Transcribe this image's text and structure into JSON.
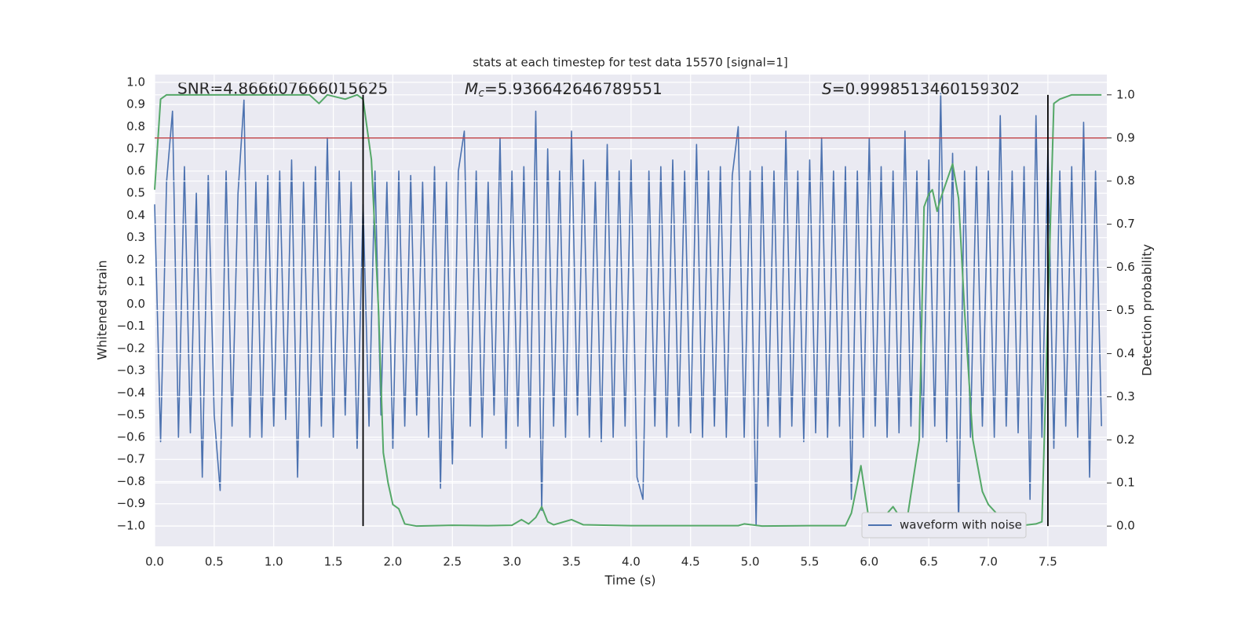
{
  "chart_data": {
    "type": "line",
    "title": "stats at each timestep for test data 15570 [signal=1]",
    "xlabel": "Time (s)",
    "ylabel": "Whitened strain",
    "y2label": "Detection probability",
    "annotations": [
      {
        "text": "SNR=4.866607666015625"
      },
      {
        "symbol": "M",
        "subscript": "c",
        "text": "=5.936642646789551"
      },
      {
        "symbol": "S",
        "text": "=0.9998513460159302"
      }
    ],
    "xlim": [
      0,
      7.995
    ],
    "ylim": [
      -1.092,
      1.035
    ],
    "y2lim": [
      -0.047,
      1.047
    ],
    "xticks": [
      {
        "value": 0,
        "label": "0.0"
      },
      0.5,
      {
        "value": 1,
        "label": "1.0"
      },
      1.5,
      {
        "value": 2,
        "label": "2.0"
      },
      2.5,
      {
        "value": 3,
        "label": "3.0"
      },
      3.5,
      {
        "value": 4,
        "label": "4.0"
      },
      4.5,
      {
        "value": 5,
        "label": "5.0"
      },
      5.5,
      {
        "value": 6,
        "label": "6.0"
      },
      6.5,
      {
        "value": 7,
        "label": "7.0"
      },
      7.5
    ],
    "yticks": [
      {
        "value": -1,
        "label": "−1.0"
      },
      {
        "value": -0.9,
        "label": "−0.9"
      },
      {
        "value": -0.8,
        "label": "−0.8"
      },
      {
        "value": -0.7,
        "label": "−0.7"
      },
      {
        "value": -0.6,
        "label": "−0.6"
      },
      {
        "value": -0.5,
        "label": "−0.5"
      },
      {
        "value": -0.4,
        "label": "−0.4"
      },
      {
        "value": -0.3,
        "label": "−0.3"
      },
      {
        "value": -0.2,
        "label": "−0.2"
      },
      {
        "value": -0.1,
        "label": "−0.1"
      },
      {
        "value": 0,
        "label": "0.0"
      },
      0.1,
      0.2,
      0.3,
      0.4,
      0.5,
      0.6,
      0.7,
      0.8,
      0.9,
      {
        "value": 1,
        "label": "1.0"
      }
    ],
    "y2ticks": [
      {
        "value": 0,
        "label": "0.0"
      },
      0.1,
      0.2,
      0.3,
      0.4,
      0.5,
      0.6,
      0.7,
      0.8,
      0.9,
      {
        "value": 1,
        "label": "1.0"
      }
    ],
    "grid": true,
    "legend": "lower right",
    "series": [
      {
        "name": "waveform with noise",
        "color": "#4c72b0",
        "x": [
          0,
          0.05,
          0.1,
          0.15,
          0.2,
          0.25,
          0.3,
          0.35,
          0.4,
          0.45,
          0.5,
          0.55,
          0.6,
          0.65,
          0.7,
          0.75,
          0.8,
          0.85,
          0.9,
          0.95,
          1,
          1.05,
          1.1,
          1.15,
          1.2,
          1.25,
          1.3,
          1.35,
          1.4,
          1.45,
          1.5,
          1.55,
          1.6,
          1.65,
          1.7,
          1.75,
          1.8,
          1.85,
          1.9,
          1.95,
          2,
          2.05,
          2.1,
          2.15,
          2.2,
          2.25,
          2.3,
          2.35,
          2.4,
          2.45,
          2.5,
          2.55,
          2.6,
          2.65,
          2.7,
          2.75,
          2.8,
          2.85,
          2.9,
          2.95,
          3,
          3.05,
          3.1,
          3.15,
          3.2,
          3.25,
          3.3,
          3.35,
          3.4,
          3.45,
          3.5,
          3.55,
          3.6,
          3.65,
          3.7,
          3.75,
          3.8,
          3.85,
          3.9,
          3.95,
          4,
          4.05,
          4.1,
          4.15,
          4.2,
          4.25,
          4.3,
          4.35,
          4.4,
          4.45,
          4.5,
          4.55,
          4.6,
          4.65,
          4.7,
          4.75,
          4.8,
          4.85,
          4.9,
          4.95,
          5,
          5.05,
          5.1,
          5.15,
          5.2,
          5.25,
          5.3,
          5.35,
          5.4,
          5.45,
          5.5,
          5.55,
          5.6,
          5.65,
          5.7,
          5.75,
          5.8,
          5.85,
          5.9,
          5.95,
          6,
          6.05,
          6.1,
          6.15,
          6.2,
          6.25,
          6.3,
          6.35,
          6.4,
          6.45,
          6.5,
          6.55,
          6.6,
          6.65,
          6.7,
          6.75,
          6.8,
          6.85,
          6.9,
          6.95,
          7,
          7.05,
          7.1,
          7.15,
          7.2,
          7.25,
          7.3,
          7.35,
          7.4,
          7.45,
          7.5,
          7.55,
          7.6,
          7.65,
          7.7,
          7.75,
          7.8,
          7.85,
          7.9,
          7.95
        ],
        "values": [
          0.45,
          -0.62,
          0.55,
          0.87,
          -0.6,
          0.62,
          -0.58,
          0.5,
          -0.78,
          0.58,
          -0.5,
          -0.84,
          0.6,
          -0.55,
          0.5,
          0.92,
          -0.6,
          0.55,
          -0.6,
          0.58,
          -0.55,
          0.6,
          -0.52,
          0.65,
          -0.78,
          0.55,
          -0.6,
          0.62,
          -0.55,
          0.75,
          -0.6,
          0.6,
          -0.5,
          0.55,
          -0.65,
          0.45,
          -0.55,
          0.6,
          -0.5,
          0.55,
          -0.65,
          0.6,
          -0.55,
          0.58,
          -0.5,
          0.55,
          -0.6,
          0.62,
          -0.83,
          0.55,
          -0.72,
          0.6,
          0.78,
          -0.55,
          0.6,
          -0.6,
          0.55,
          -0.5,
          0.75,
          -0.65,
          0.6,
          -0.55,
          0.62,
          -0.6,
          0.87,
          -0.93,
          0.7,
          -0.55,
          0.6,
          -0.6,
          0.78,
          -0.5,
          0.65,
          -0.6,
          0.55,
          -0.62,
          0.72,
          -0.6,
          0.6,
          -0.55,
          0.65,
          -0.78,
          -0.88,
          0.6,
          -0.55,
          0.62,
          -0.6,
          0.65,
          -0.55,
          0.6,
          -0.58,
          0.72,
          -0.6,
          0.6,
          -0.55,
          0.62,
          -0.6,
          0.58,
          0.8,
          -0.6,
          0.6,
          -1.0,
          0.62,
          -0.55,
          0.6,
          -0.6,
          0.78,
          -0.55,
          0.6,
          -0.62,
          0.65,
          -0.58,
          0.75,
          -0.6,
          0.6,
          -0.55,
          0.62,
          -0.88,
          0.6,
          -0.6,
          0.75,
          -0.55,
          0.62,
          -0.6,
          0.6,
          -0.58,
          0.78,
          -0.55,
          0.6,
          -0.6,
          0.65,
          -0.55,
          0.95,
          -0.62,
          0.68,
          -1.0,
          0.6,
          -0.6,
          0.62,
          -0.55,
          0.6,
          -0.6,
          0.85,
          -0.55,
          0.6,
          -0.58,
          0.62,
          -0.88,
          0.85,
          -0.6,
          0.7,
          -0.65,
          0.6,
          -0.55,
          0.62,
          -0.6,
          0.82,
          -0.78,
          0.6,
          -0.55
        ]
      },
      {
        "color": "#55a868",
        "axis": "y2",
        "x": [
          0,
          0.05,
          0.1,
          0.5,
          1,
          1.3,
          1.38,
          1.45,
          1.6,
          1.7,
          1.75,
          1.82,
          1.88,
          1.92,
          1.96,
          2,
          2.05,
          2.1,
          2.2,
          2.5,
          2.8,
          3,
          3.08,
          3.14,
          3.2,
          3.25,
          3.3,
          3.35,
          3.5,
          3.6,
          4,
          4.5,
          4.9,
          4.95,
          5.1,
          5.5,
          5.8,
          5.85,
          5.93,
          6,
          6.05,
          6.12,
          6.2,
          6.26,
          6.32,
          6.42,
          6.46,
          6.5,
          6.53,
          6.57,
          6.6,
          6.65,
          6.7,
          6.75,
          6.8,
          6.87,
          6.95,
          7,
          7.1,
          7.2,
          7.3,
          7.4,
          7.45,
          7.5,
          7.55,
          7.6,
          7.7,
          7.95
        ],
        "values": [
          0.78,
          0.99,
          1,
          1,
          1,
          1,
          0.98,
          1,
          0.99,
          1,
          0.99,
          0.85,
          0.5,
          0.17,
          0.1,
          0.05,
          0.04,
          0.005,
          0,
          0.002,
          0.001,
          0.002,
          0.015,
          0.005,
          0.02,
          0.045,
          0.01,
          0.003,
          0.015,
          0.003,
          0.001,
          0.001,
          0.001,
          0.005,
          0,
          0.001,
          0.001,
          0.03,
          0.14,
          0.01,
          0.005,
          0.02,
          0.045,
          0.02,
          0.02,
          0.2,
          0.74,
          0.77,
          0.78,
          0.73,
          0.76,
          0.8,
          0.84,
          0.76,
          0.5,
          0.2,
          0.08,
          0.05,
          0.02,
          0.005,
          0.002,
          0.005,
          0.01,
          0.5,
          0.98,
          0.99,
          1,
          1
        ]
      }
    ],
    "hline": {
      "value": 0.9,
      "axis": "y2",
      "color": "#c44e52"
    },
    "vlines": [
      1.75,
      7.5
    ],
    "vline_range": [
      0,
      1
    ],
    "vline_color": "#000000"
  }
}
